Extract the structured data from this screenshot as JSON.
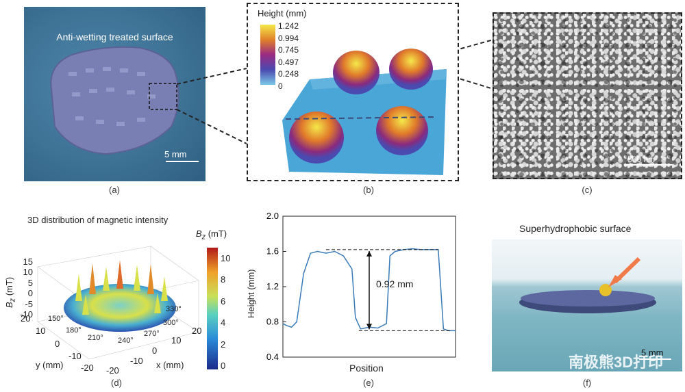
{
  "panel_a": {
    "title": "Anti-wetting treated surface",
    "scale_bar": "5 mm",
    "label": "(a)"
  },
  "panel_b": {
    "colorbar_title": "Height (mm)",
    "colorbar_ticks": [
      "1.242",
      "0.994",
      "0.745",
      "0.497",
      "0.248",
      "0"
    ],
    "label": "(b)"
  },
  "panel_c": {
    "scale_bar": "500 nm",
    "label": "(c)"
  },
  "panel_d": {
    "title": "3D distribution of magnetic intensity",
    "colorbar_title_main": "B",
    "colorbar_title_sub": "z",
    "colorbar_title_unit": " (mT)",
    "colorbar_ticks": [
      "10",
      "8",
      "6",
      "4",
      "2",
      "0"
    ],
    "z_axis_label": "B",
    "z_axis_sub": "z",
    "z_axis_unit": " (mT)",
    "z_ticks": [
      "15",
      "10",
      "5",
      "0",
      "-5",
      "-10"
    ],
    "y_axis_label": "y (mm)",
    "y_ticks": [
      "20",
      "10",
      "0",
      "-10",
      "-20"
    ],
    "x_axis_label": "x (mm)",
    "x_ticks": [
      "-20",
      "-10",
      "0",
      "10",
      "20"
    ],
    "angle_labels": [
      "150°",
      "180°",
      "210°",
      "240°",
      "270°",
      "300°",
      "330°"
    ],
    "label": "(d)"
  },
  "panel_e": {
    "ylabel": "Height (mm)",
    "xlabel": "Position",
    "annotation": "0.92 mm",
    "y_ticks": [
      "2.0",
      "1.6",
      "1.2",
      "0.8",
      "0.4"
    ],
    "label": "(e)"
  },
  "panel_f": {
    "title": "Superhydrophobic surface",
    "scale_bar": "5 mm",
    "watermark": "南极熊3D打印",
    "label": "(f)"
  },
  "chart_data": {
    "type": "line",
    "title": "",
    "xlabel": "Position",
    "ylabel": "Height (mm)",
    "ylim": [
      0.4,
      2.0
    ],
    "x": [
      0,
      0.02,
      0.05,
      0.08,
      0.12,
      0.16,
      0.2,
      0.25,
      0.3,
      0.35,
      0.4,
      0.42,
      0.45,
      0.5,
      0.55,
      0.6,
      0.62,
      0.65,
      0.7,
      0.75,
      0.8,
      0.85,
      0.9,
      0.93,
      0.96,
      1.0
    ],
    "values": [
      0.78,
      0.76,
      0.74,
      0.8,
      1.35,
      1.58,
      1.6,
      1.58,
      1.6,
      1.55,
      1.4,
      0.85,
      0.72,
      0.74,
      0.73,
      0.78,
      1.55,
      1.6,
      1.62,
      1.63,
      1.62,
      1.62,
      1.62,
      0.72,
      0.7,
      0.7
    ]
  }
}
